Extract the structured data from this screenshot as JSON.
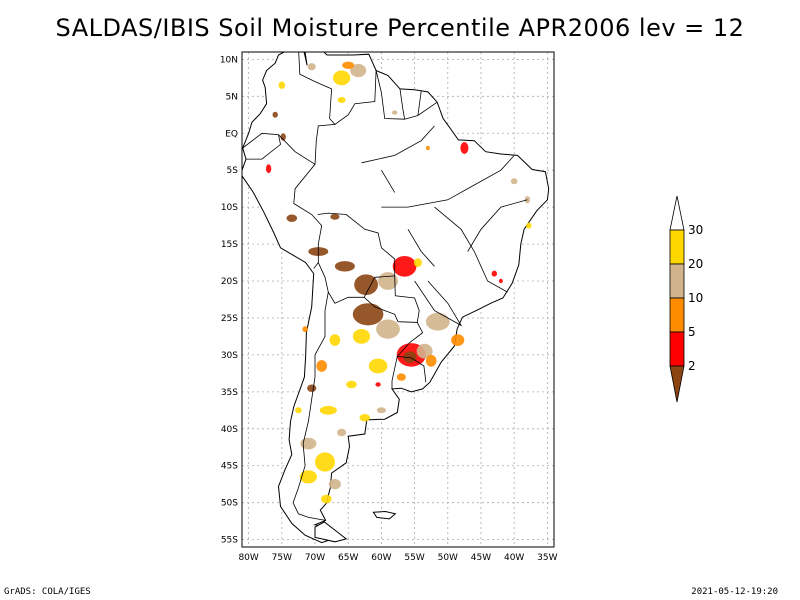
{
  "title": "SALDAS/IBIS Soil Moisture Percentile APR2006 lev = 12",
  "footer": {
    "left": "GrADS: COLA/IGES",
    "right": "2021-05-12-19:20"
  },
  "map": {
    "lon_range": [
      -81,
      -34
    ],
    "lat_range": [
      -56,
      11
    ],
    "lat_ticks": [
      {
        "value": 10,
        "label": "10N"
      },
      {
        "value": 5,
        "label": "5N"
      },
      {
        "value": 0,
        "label": "EQ"
      },
      {
        "value": -5,
        "label": "5S"
      },
      {
        "value": -10,
        "label": "10S"
      },
      {
        "value": -15,
        "label": "15S"
      },
      {
        "value": -20,
        "label": "20S"
      },
      {
        "value": -25,
        "label": "25S"
      },
      {
        "value": -30,
        "label": "30S"
      },
      {
        "value": -35,
        "label": "35S"
      },
      {
        "value": -40,
        "label": "40S"
      },
      {
        "value": -45,
        "label": "45S"
      },
      {
        "value": -50,
        "label": "50S"
      },
      {
        "value": -55,
        "label": "55S"
      }
    ],
    "lon_ticks": [
      {
        "value": -80,
        "label": "80W"
      },
      {
        "value": -75,
        "label": "75W"
      },
      {
        "value": -70,
        "label": "70W"
      },
      {
        "value": -65,
        "label": "65W"
      },
      {
        "value": -60,
        "label": "60W"
      },
      {
        "value": -55,
        "label": "55W"
      },
      {
        "value": -50,
        "label": "50W"
      },
      {
        "value": -45,
        "label": "45W"
      },
      {
        "value": -40,
        "label": "40W"
      },
      {
        "value": -35,
        "label": "35W"
      }
    ]
  },
  "colorbar": {
    "levels": [
      "2",
      "5",
      "10",
      "20",
      "30"
    ],
    "colors": [
      "#8b4513",
      "#ff0000",
      "#ff8c00",
      "#d2b48c",
      "#ffd700",
      "#ffffff"
    ]
  }
}
